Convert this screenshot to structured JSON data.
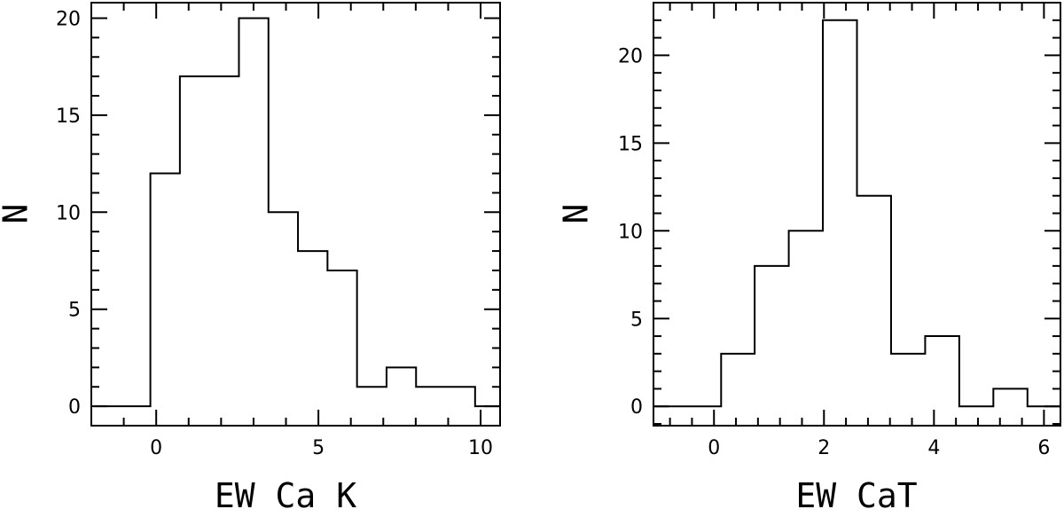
{
  "chart_data": [
    {
      "type": "histogram",
      "xlabel": "EW Ca K",
      "ylabel": "N",
      "xlim": [
        -2,
        10.6
      ],
      "ylim": [
        -1,
        20.8
      ],
      "xticks": [
        "0",
        "5",
        "10"
      ],
      "yticks": [
        "0",
        "5",
        "10",
        "15",
        "20"
      ],
      "bin_edges": [
        -1.94,
        -0.18,
        0.73,
        1.64,
        2.55,
        3.46,
        4.37,
        5.28,
        6.19,
        7.1,
        8.01,
        8.92,
        9.83,
        10.6
      ],
      "counts": [
        0,
        12,
        17,
        17,
        20,
        10,
        8,
        7,
        1,
        2,
        1,
        1,
        0
      ]
    },
    {
      "type": "histogram",
      "xlabel": "EW CaT",
      "ylabel": "N",
      "xlim": [
        -1.1,
        6.3
      ],
      "ylim": [
        -1.1,
        23
      ],
      "xticks": [
        "0",
        "2",
        "4",
        "6"
      ],
      "yticks": [
        "0",
        "5",
        "10",
        "15",
        "20"
      ],
      "bin_edges": [
        -1.1,
        0.13,
        0.74,
        1.36,
        1.98,
        2.6,
        3.22,
        3.84,
        4.46,
        5.08,
        5.7,
        6.3
      ],
      "counts": [
        0,
        3,
        8,
        10,
        22,
        12,
        3,
        4,
        0,
        1,
        0
      ]
    }
  ]
}
